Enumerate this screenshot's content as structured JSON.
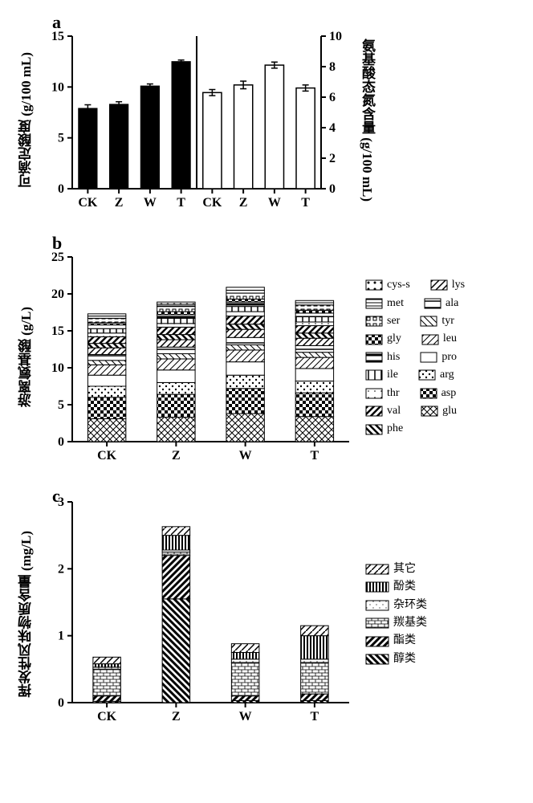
{
  "panelA": {
    "label": "a",
    "y_left_label": "可滴定酸度 (g/100 mL)",
    "y_right_label": "氨基酸态氮含量 (g/100 mL)",
    "categories": [
      "CK",
      "Z",
      "W",
      "T"
    ],
    "y_left": {
      "min": 0,
      "max": 15,
      "ticks": [
        0,
        5,
        10,
        15
      ]
    },
    "y_right": {
      "min": 0,
      "max": 10,
      "ticks": [
        0,
        2,
        4,
        6,
        8,
        10
      ]
    },
    "left_bars": {
      "values": [
        7.9,
        8.3,
        10.1,
        12.5
      ],
      "err": [
        0.35,
        0.25,
        0.2,
        0.15
      ],
      "color": "#000000"
    },
    "right_bars": {
      "values": [
        6.3,
        6.8,
        8.1,
        6.6
      ],
      "err": [
        0.2,
        0.25,
        0.2,
        0.2
      ],
      "color": "#ffffff"
    },
    "bar_width": 0.6,
    "axis_color": "#000000",
    "tick_fontsize": 16,
    "tick_fontweight": "bold"
  },
  "panelB": {
    "label": "b",
    "y_label": "游离氨基酸  (g/L)",
    "categories": [
      "CK",
      "Z",
      "W",
      "T"
    ],
    "y": {
      "min": 0,
      "max": 25,
      "ticks": [
        0,
        5,
        10,
        15,
        20,
        25
      ]
    },
    "amino_order": [
      "glu",
      "asp",
      "arg",
      "pro",
      "leu",
      "tyr",
      "ala",
      "lys",
      "phe",
      "val",
      "thr",
      "ile",
      "his",
      "gly",
      "ser",
      "met",
      "cys-s"
    ],
    "legend_col1": [
      "cys-s",
      "met",
      "ser",
      "gly",
      "his",
      "ile",
      "thr",
      "val",
      "phe"
    ],
    "legend_col2": [
      "lys",
      "ala",
      "tyr",
      "leu",
      "pro",
      "arg",
      "asp",
      "glu"
    ],
    "data": {
      "CK": {
        "glu": 3.1,
        "asp": 2.9,
        "arg": 1.5,
        "pro": 1.5,
        "leu": 1.4,
        "tyr": 0.6,
        "ala": 0.8,
        "lys": 0.9,
        "phe": 0.6,
        "val": 0.9,
        "thr": 0.5,
        "ile": 0.6,
        "his": 0.5,
        "gly": 0.3,
        "ser": 0.6,
        "met": 0.3,
        "cys-s": 0.3
      },
      "Z": {
        "glu": 3.3,
        "asp": 3.1,
        "arg": 1.6,
        "pro": 1.7,
        "leu": 1.5,
        "tyr": 0.7,
        "ala": 0.9,
        "lys": 1.0,
        "phe": 0.7,
        "val": 1.0,
        "thr": 0.5,
        "ile": 0.7,
        "his": 0.5,
        "gly": 0.4,
        "ser": 0.7,
        "met": 0.3,
        "cys-s": 0.3
      },
      "W": {
        "glu": 3.8,
        "asp": 3.4,
        "arg": 1.8,
        "pro": 1.8,
        "leu": 1.6,
        "tyr": 0.7,
        "ala": 1.0,
        "lys": 1.1,
        "phe": 0.7,
        "val": 1.1,
        "thr": 0.6,
        "ile": 0.7,
        "his": 0.6,
        "gly": 0.4,
        "ser": 0.8,
        "met": 0.4,
        "cys-s": 0.4
      },
      "T": {
        "glu": 3.4,
        "asp": 3.2,
        "arg": 1.6,
        "pro": 1.7,
        "leu": 1.5,
        "tyr": 0.7,
        "ala": 0.9,
        "lys": 1.0,
        "phe": 0.7,
        "val": 1.0,
        "thr": 0.5,
        "ile": 0.7,
        "his": 0.5,
        "gly": 0.4,
        "ser": 0.7,
        "met": 0.3,
        "cys-s": 0.3
      }
    },
    "patterns": {
      "glu": "crosshatch",
      "asp": "checker",
      "arg": "dots",
      "pro": "white",
      "leu": "diag-r",
      "tyr": "diag-l",
      "ala": "hstripe",
      "lys": "diag-r2",
      "phe": "diag-l-thick",
      "val": "diag-r-thick",
      "thr": "dots-sparse",
      "ile": "vstripe",
      "his": "hstripe-thick",
      "gly": "checker-big",
      "ser": "squares",
      "met": "hstripe2",
      "cys-s": "dots2"
    },
    "bar_width": 0.55
  },
  "panelC": {
    "label": "c",
    "y_label": "挥发性风味物质含量 (mg/L)",
    "categories": [
      "CK",
      "Z",
      "W",
      "T"
    ],
    "y": {
      "min": 0,
      "max": 3,
      "ticks": [
        0,
        1,
        2,
        3
      ]
    },
    "legend": [
      "其它",
      "酚类",
      "杂环类",
      "羰基类",
      "酯类",
      "醇类"
    ],
    "stack_order": [
      "醇类",
      "酯类",
      "羰基类",
      "杂环类",
      "酚类",
      "其它"
    ],
    "data": {
      "CK": {
        "醇类": 0.02,
        "酯类": 0.08,
        "羰基类": 0.4,
        "杂环类": 0.03,
        "酚类": 0.05,
        "其它": 0.1
      },
      "Z": {
        "醇类": 1.55,
        "酯类": 0.65,
        "羰基类": 0.05,
        "杂环类": 0.03,
        "酚类": 0.22,
        "其它": 0.13
      },
      "W": {
        "醇类": 0.03,
        "酯类": 0.07,
        "羰基类": 0.5,
        "杂环类": 0.05,
        "酚类": 0.1,
        "其它": 0.13
      },
      "T": {
        "醇类": 0.03,
        "酯类": 0.1,
        "羰基类": 0.47,
        "杂环类": 0.05,
        "酚类": 0.35,
        "其它": 0.15
      }
    },
    "patterns": {
      "其它": "diag-r-sparse",
      "酚类": "vstripe-thick",
      "杂环类": "dots-fine",
      "羰基类": "bricks",
      "酯类": "diag-r-heavy",
      "醇类": "diag-l-heavy"
    },
    "bar_width": 0.4
  }
}
